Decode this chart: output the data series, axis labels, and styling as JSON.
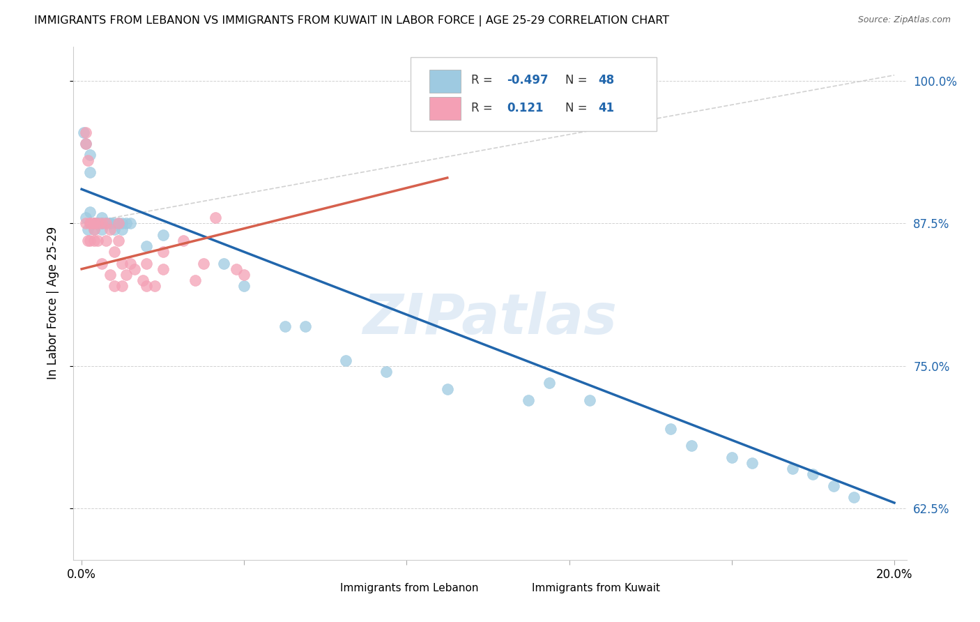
{
  "title": "IMMIGRANTS FROM LEBANON VS IMMIGRANTS FROM KUWAIT IN LABOR FORCE | AGE 25-29 CORRELATION CHART",
  "source": "Source: ZipAtlas.com",
  "ylabel": "In Labor Force | Age 25-29",
  "blue_color": "#92c5de",
  "pink_color": "#f4a582",
  "blue_scatter_color": "#9ecae1",
  "pink_scatter_color": "#f4a0b5",
  "blue_line_color": "#2166ac",
  "pink_line_color": "#d6604d",
  "watermark_color": "#c6dbef",
  "legend_blue_r": "-0.497",
  "legend_blue_n": "48",
  "legend_pink_r": "0.121",
  "legend_pink_n": "41",
  "xlim": [
    0.0,
    0.2
  ],
  "ylim": [
    0.58,
    1.03
  ],
  "yticks": [
    0.625,
    0.75,
    0.875,
    1.0
  ],
  "ytick_labels": [
    "62.5%",
    "75.0%",
    "87.5%",
    "100.0%"
  ],
  "xtick_labels": [
    "0.0%",
    "20.0%"
  ],
  "lebanon_x": [
    0.0005,
    0.001,
    0.001,
    0.0015,
    0.002,
    0.002,
    0.002,
    0.003,
    0.003,
    0.003,
    0.004,
    0.004,
    0.004,
    0.005,
    0.005,
    0.005,
    0.005,
    0.006,
    0.006,
    0.007,
    0.007,
    0.008,
    0.008,
    0.009,
    0.01,
    0.01,
    0.011,
    0.012,
    0.016,
    0.02,
    0.035,
    0.04,
    0.05,
    0.055,
    0.065,
    0.075,
    0.09,
    0.11,
    0.115,
    0.125,
    0.145,
    0.15,
    0.16,
    0.165,
    0.175,
    0.18,
    0.185,
    0.19
  ],
  "lebanon_y": [
    0.955,
    0.945,
    0.88,
    0.87,
    0.92,
    0.885,
    0.935,
    0.875,
    0.875,
    0.87,
    0.875,
    0.875,
    0.875,
    0.88,
    0.875,
    0.875,
    0.87,
    0.875,
    0.875,
    0.875,
    0.875,
    0.875,
    0.87,
    0.875,
    0.875,
    0.87,
    0.875,
    0.875,
    0.855,
    0.865,
    0.84,
    0.82,
    0.785,
    0.785,
    0.755,
    0.745,
    0.73,
    0.72,
    0.735,
    0.72,
    0.695,
    0.68,
    0.67,
    0.665,
    0.66,
    0.655,
    0.645,
    0.635
  ],
  "kuwait_x": [
    0.001,
    0.001,
    0.001,
    0.0015,
    0.0015,
    0.002,
    0.002,
    0.002,
    0.003,
    0.003,
    0.003,
    0.003,
    0.004,
    0.004,
    0.005,
    0.005,
    0.006,
    0.006,
    0.007,
    0.007,
    0.008,
    0.008,
    0.009,
    0.009,
    0.01,
    0.01,
    0.011,
    0.012,
    0.013,
    0.015,
    0.016,
    0.016,
    0.018,
    0.02,
    0.02,
    0.025,
    0.028,
    0.03,
    0.033,
    0.038,
    0.04
  ],
  "kuwait_y": [
    0.955,
    0.945,
    0.875,
    0.93,
    0.86,
    0.875,
    0.86,
    0.875,
    0.875,
    0.875,
    0.87,
    0.86,
    0.875,
    0.86,
    0.875,
    0.84,
    0.875,
    0.86,
    0.87,
    0.83,
    0.85,
    0.82,
    0.875,
    0.86,
    0.84,
    0.82,
    0.83,
    0.84,
    0.835,
    0.825,
    0.84,
    0.82,
    0.82,
    0.835,
    0.85,
    0.86,
    0.825,
    0.84,
    0.88,
    0.835,
    0.83
  ]
}
